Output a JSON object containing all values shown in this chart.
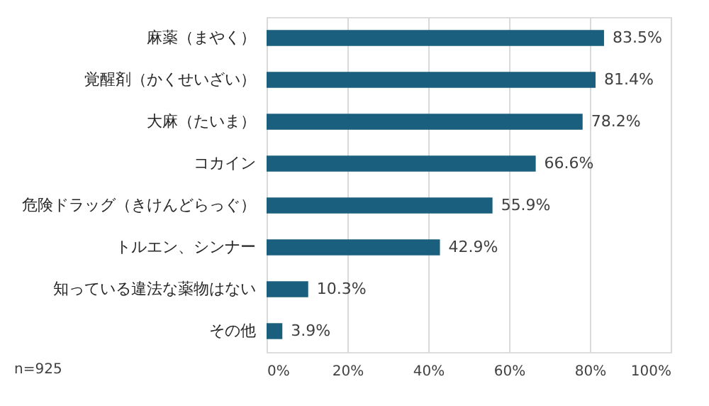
{
  "chart_data": {
    "type": "bar",
    "orientation": "horizontal",
    "categories": [
      "麻薬（まやく）",
      "覚醒剤（かくせいざい）",
      "大麻（たいま）",
      "コカイン",
      "危険ドラッグ（きけんどらっぐ）",
      "トルエン、シンナー",
      "知っている違法な薬物はない",
      "その他"
    ],
    "values": [
      83.5,
      81.4,
      78.2,
      66.6,
      55.9,
      42.9,
      10.3,
      3.9
    ],
    "value_labels": [
      "83.5%",
      "81.4%",
      "78.2%",
      "66.6%",
      "55.9%",
      "42.9%",
      "10.3%",
      "3.9%"
    ],
    "color": "#1b5f7e",
    "xlim": [
      0,
      100
    ],
    "xticks": [
      {
        "value": 0,
        "label": "0%"
      },
      {
        "value": 20,
        "label": "20%"
      },
      {
        "value": 40,
        "label": "40%"
      },
      {
        "value": 60,
        "label": "60%"
      },
      {
        "value": 80,
        "label": "80%"
      },
      {
        "value": 100,
        "label": "100%"
      }
    ],
    "grid": "x",
    "annotations": [
      "n=925"
    ]
  }
}
